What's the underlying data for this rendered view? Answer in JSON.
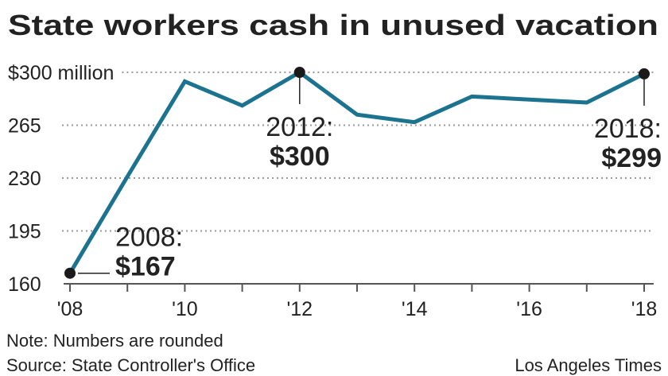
{
  "chart_data": {
    "type": "line",
    "title": "State workers cash in unused vacation",
    "x": [
      2008,
      2009,
      2010,
      2011,
      2012,
      2013,
      2014,
      2015,
      2016,
      2017,
      2018
    ],
    "series": [
      {
        "color": "#1b7390",
        "values": [
          167,
          231,
          294,
          278,
          300,
          272,
          267,
          284,
          282,
          280,
          299
        ],
        "value_labels": [
          "$167",
          null,
          null,
          null,
          "$300",
          null,
          null,
          null,
          null,
          null,
          "$299"
        ]
      }
    ],
    "annotations": [
      "2008:",
      null,
      null,
      null,
      "2012:",
      null,
      null,
      null,
      null,
      null,
      "2018:"
    ],
    "xlim": [
      2008,
      2018
    ],
    "xticks": [
      {
        "value": 2008,
        "label": "'08"
      },
      {
        "value": 2010,
        "label": "'10"
      },
      {
        "value": 2012,
        "label": "'12"
      },
      {
        "value": 2014,
        "label": "'14"
      },
      {
        "value": 2016,
        "label": "'16"
      },
      {
        "value": 2018,
        "label": "'18"
      }
    ],
    "xminorticks": [
      2009,
      2011,
      2013,
      2015,
      2017
    ],
    "ylim": [
      160,
      300
    ],
    "yticks": [
      160,
      195,
      230,
      265,
      {
        "value": 300,
        "label": "$300 million"
      }
    ],
    "grid": true,
    "note": "Note: Numbers are rounded",
    "source": "Source: State Controller's Office",
    "credit": "Los Angeles Times"
  }
}
